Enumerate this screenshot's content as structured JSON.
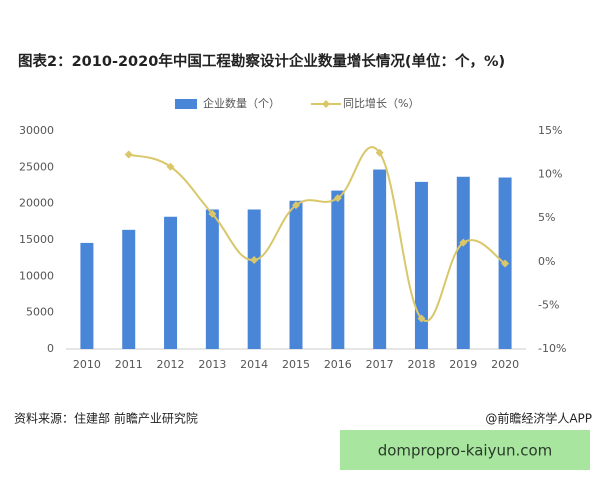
{
  "chart_data": {
    "type": "bar-line",
    "title": "图表2：2010-2020年中国工程勘察设计企业数量增长情况(单位：个，%)",
    "categories": [
      "2010",
      "2011",
      "2012",
      "2013",
      "2014",
      "2015",
      "2016",
      "2017",
      "2018",
      "2019",
      "2020"
    ],
    "series": [
      {
        "name": "企业数量（个）",
        "type": "bar",
        "color": "#4a86d8",
        "values": [
          14600,
          16400,
          18200,
          19200,
          19200,
          20400,
          21800,
          24700,
          23000,
          23700,
          23600
        ]
      },
      {
        "name": "同比增长（%）",
        "type": "line",
        "axis": "y2",
        "color": "#d9c76a",
        "values": [
          null,
          12.3,
          10.9,
          5.5,
          0.2,
          6.5,
          7.3,
          12.5,
          -6.5,
          2.2,
          -0.2
        ]
      }
    ],
    "ylim": [
      0,
      30000
    ],
    "yticks": [
      0,
      5000,
      10000,
      15000,
      20000,
      25000,
      30000
    ],
    "y2lim": [
      -10,
      15
    ],
    "y2ticks": [
      {
        "value": -10,
        "label": "-10%"
      },
      {
        "value": -5,
        "label": "-5%"
      },
      {
        "value": 0,
        "label": "0%"
      },
      {
        "value": 5,
        "label": "5%"
      },
      {
        "value": 10,
        "label": "10%"
      },
      {
        "value": 15,
        "label": "15%"
      }
    ],
    "grid": false,
    "legend": "top",
    "source": "资料来源：住建部 前瞻产业研究院",
    "credit": "@前瞻经济学人APP",
    "banner": "dompropro-kaiyun.com"
  }
}
